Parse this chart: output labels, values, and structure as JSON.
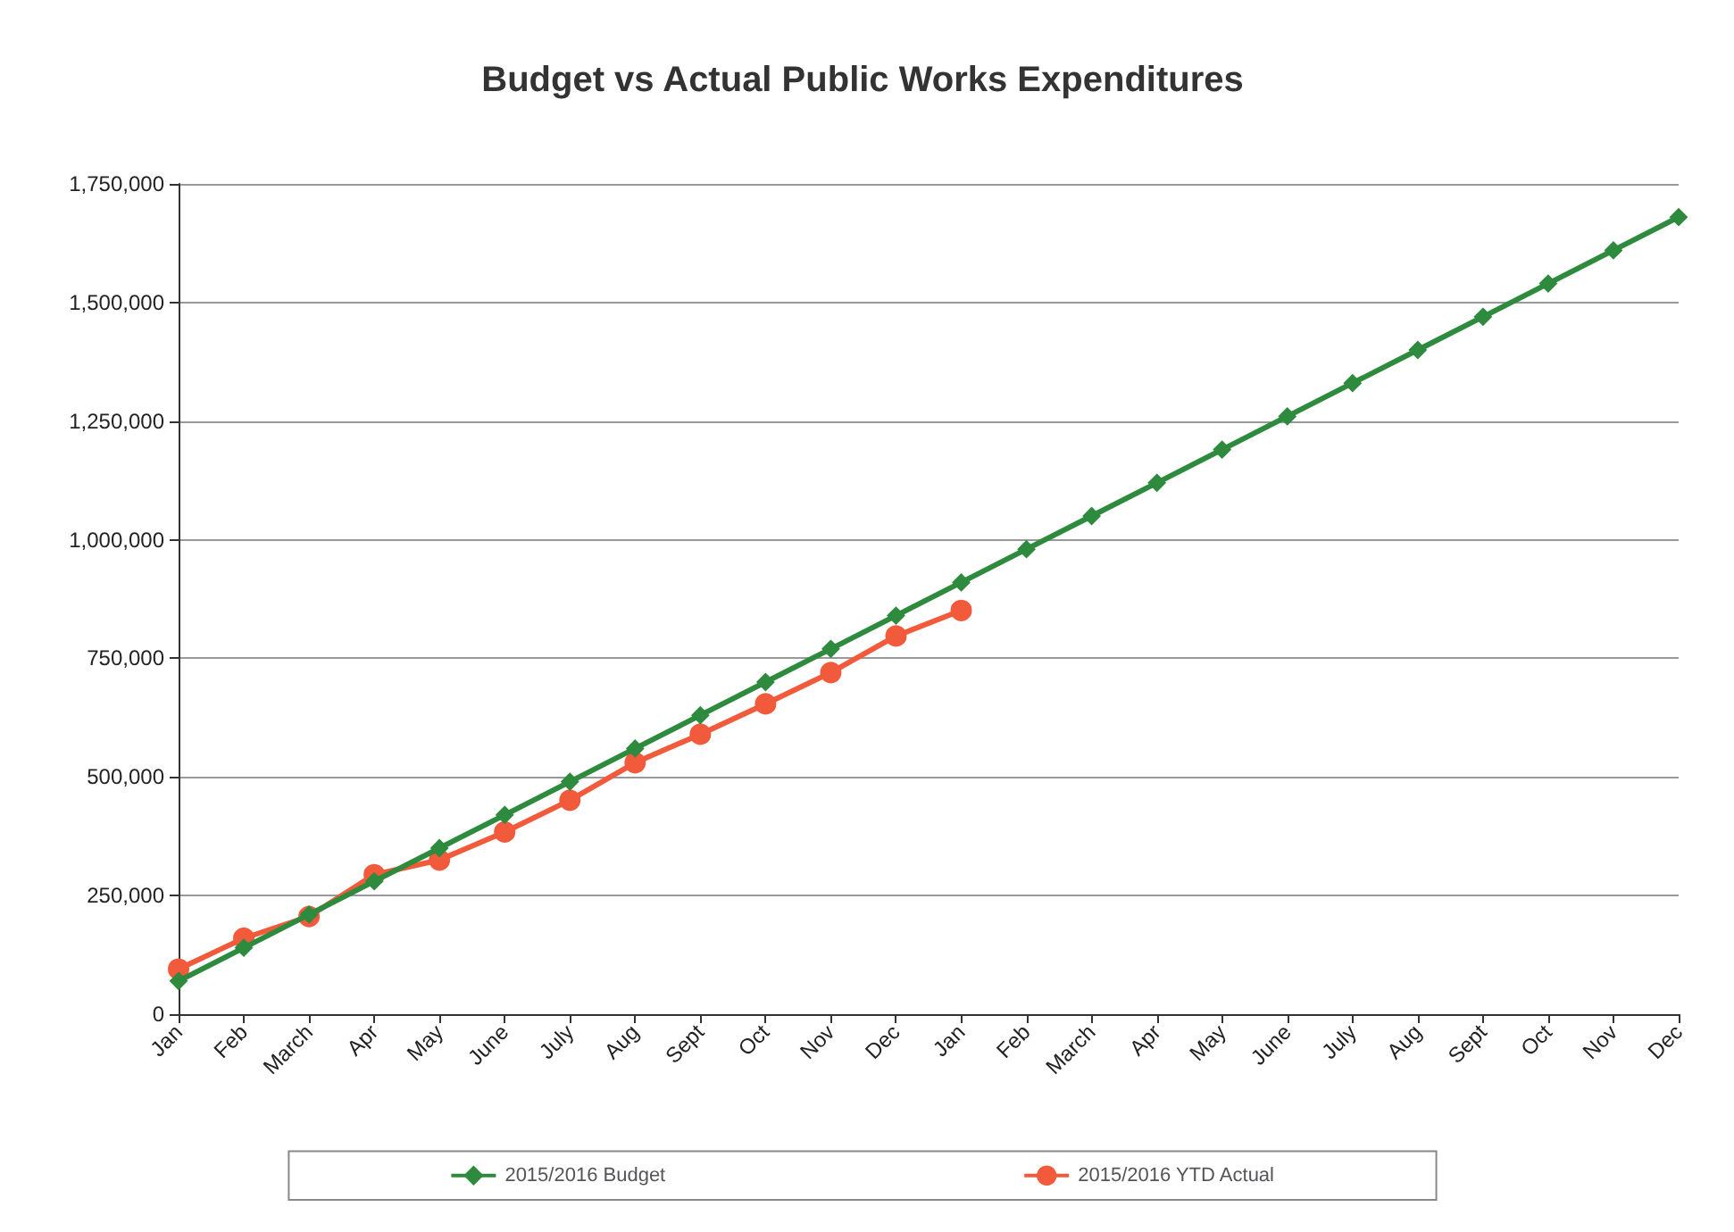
{
  "chart_data": {
    "type": "line",
    "title": "Budget vs Actual Public Works Expenditures",
    "categories": [
      "Jan",
      "Feb",
      "March",
      "Apr",
      "May",
      "June",
      "July",
      "Aug",
      "Sept",
      "Oct",
      "Nov",
      "Dec",
      "Jan",
      "Feb",
      "March",
      "Apr",
      "May",
      "June",
      "July",
      "Aug",
      "Sept",
      "Oct",
      "Nov",
      "Dec"
    ],
    "series": [
      {
        "name": "2015/2016 Budget",
        "color": "#2e8b3e",
        "marker": "diamond",
        "values": [
          70000,
          140000,
          210000,
          280000,
          350000,
          420000,
          490000,
          560000,
          630000,
          700000,
          770000,
          840000,
          910000,
          980000,
          1050000,
          1120000,
          1190000,
          1260000,
          1330000,
          1400000,
          1470000,
          1540000,
          1610000,
          1680000
        ]
      },
      {
        "name": "2015/2016 YTD Actual",
        "color": "#f25a3c",
        "marker": "circle",
        "values": [
          95000,
          160000,
          206000,
          294000,
          325000,
          384000,
          451000,
          530000,
          590000,
          654000,
          720000,
          797000,
          851000,
          null,
          null,
          null,
          null,
          null,
          null,
          null,
          null,
          null,
          null,
          null
        ]
      }
    ],
    "ylim": [
      0,
      1750000
    ],
    "yticks": [
      0,
      {
        "value": 250000,
        "label": "250,000"
      },
      {
        "value": 500000,
        "label": "500,000"
      },
      {
        "value": 750000,
        "label": "750,000"
      },
      {
        "value": 1000000,
        "label": "1,000,000"
      },
      {
        "value": 1250000,
        "label": "1,250,000"
      },
      {
        "value": 1500000,
        "label": "1,500,000"
      },
      {
        "value": 1750000,
        "label": "1,750,000"
      }
    ],
    "grid": "y",
    "legend": "bottom",
    "line_style": "solid"
  }
}
